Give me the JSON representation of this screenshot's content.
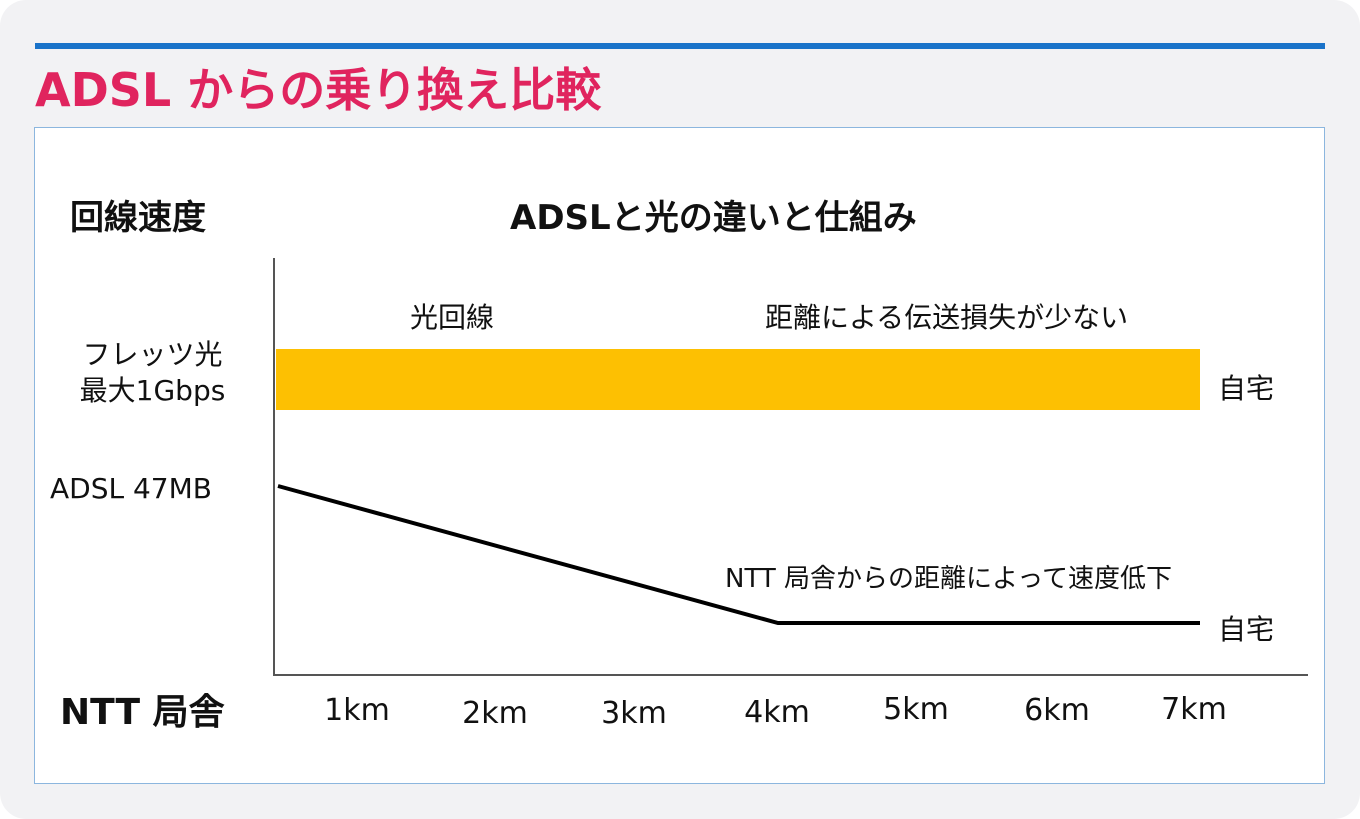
{
  "title": "ADSL からの乗り換え比較",
  "y_axis_heading": "回線速度",
  "chart_heading": "ADSLと光の違いと仕組み",
  "fiber": {
    "line_label": "光回線",
    "note": "距離による伝送損失が少ない",
    "speed_label_line1": "フレッツ光",
    "speed_label_line2": "最大1Gbps",
    "end_label": "自宅"
  },
  "adsl": {
    "speed_label": "ADSL 47MB",
    "note": "NTT 局舎からの距離によって速度低下",
    "end_label": "自宅"
  },
  "origin_label": "NTT 局舎",
  "x_ticks": [
    "1km",
    "2km",
    "3km",
    "4km",
    "5km",
    "6km",
    "7km"
  ],
  "colors": {
    "title": "#e0245e",
    "rule": "#1a73c9",
    "fiber_bar": "#fdc002",
    "adsl_line": "#000000"
  },
  "adsl_curve_km": [
    0,
    4,
    7
  ]
}
